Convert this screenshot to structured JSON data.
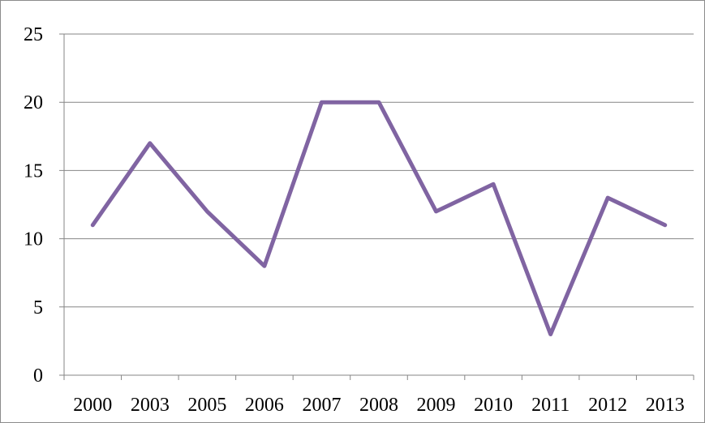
{
  "chart_data": {
    "type": "line",
    "title": "",
    "xlabel": "",
    "ylabel": "",
    "categories": [
      "2000",
      "2003",
      "2005",
      "2006",
      "2007",
      "2008",
      "2009",
      "2010",
      "2011",
      "2012",
      "2013"
    ],
    "series": [
      {
        "values": [
          11,
          17,
          12,
          8,
          20,
          20,
          12,
          14,
          3,
          13,
          11
        ],
        "color": "#8064a2"
      }
    ],
    "ylim": [
      0,
      25
    ],
    "yticks": [
      "0",
      "5",
      "10",
      "15",
      "20",
      "25"
    ],
    "grid": true,
    "legend": "none"
  }
}
